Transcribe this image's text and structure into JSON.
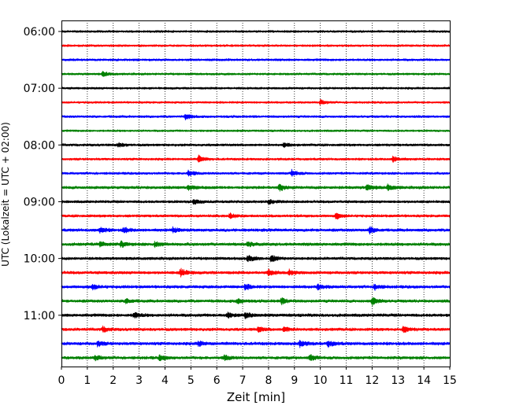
{
  "chart_data": {
    "type": "line",
    "xlabel": "Zeit  [min]",
    "ylabel": "UTC (Lokalzeit = UTC + 02:00)",
    "xlim": [
      0,
      15
    ],
    "x_ticks": [
      0,
      1,
      2,
      3,
      4,
      5,
      6,
      7,
      8,
      9,
      10,
      11,
      12,
      13,
      14,
      15
    ],
    "x_tick_labels": [
      "0",
      "1",
      "2",
      "3",
      "4",
      "5",
      "6",
      "7",
      "8",
      "9",
      "10",
      "11",
      "12",
      "13",
      "14",
      "15"
    ],
    "vertical_grid": "dotted, at every minute",
    "y_tick_labels": [
      "06:00",
      "07:00",
      "08:00",
      "09:00",
      "10:00",
      "11:00"
    ],
    "trace_start_times": [
      "06:00",
      "06:15",
      "06:30",
      "06:45",
      "07:00",
      "07:15",
      "07:30",
      "07:45",
      "08:00",
      "08:15",
      "08:30",
      "08:45",
      "09:00",
      "09:15",
      "09:30",
      "09:45",
      "10:00",
      "10:15",
      "10:30",
      "10:45",
      "11:00",
      "11:15",
      "11:30",
      "11:45"
    ],
    "trace_minutes_per_line": 15,
    "color_cycle": [
      "#000000",
      "#ff0000",
      "#0000ff",
      "#008000"
    ],
    "series": [
      {
        "start": "06:00",
        "amp": 1.5,
        "events": []
      },
      {
        "start": "06:15",
        "amp": 1.5,
        "events": []
      },
      {
        "start": "06:30",
        "amp": 1.6,
        "events": []
      },
      {
        "start": "06:45",
        "amp": 1.5,
        "events": [
          {
            "x": 1.6,
            "a": 3
          }
        ]
      },
      {
        "start": "07:00",
        "amp": 1.5,
        "events": []
      },
      {
        "start": "07:15",
        "amp": 1.4,
        "events": [
          {
            "x": 10.0,
            "a": 3
          }
        ]
      },
      {
        "start": "07:30",
        "amp": 1.6,
        "events": [
          {
            "x": 4.8,
            "a": 3.5
          }
        ]
      },
      {
        "start": "07:45",
        "amp": 1.4,
        "events": []
      },
      {
        "start": "08:00",
        "amp": 1.7,
        "events": [
          {
            "x": 2.2,
            "a": 2.5
          },
          {
            "x": 8.6,
            "a": 2.5
          }
        ]
      },
      {
        "start": "08:15",
        "amp": 1.6,
        "events": [
          {
            "x": 5.3,
            "a": 4
          },
          {
            "x": 12.8,
            "a": 3.5
          }
        ]
      },
      {
        "start": "08:30",
        "amp": 1.6,
        "events": [
          {
            "x": 4.9,
            "a": 3.5
          },
          {
            "x": 8.9,
            "a": 4
          }
        ]
      },
      {
        "start": "08:45",
        "amp": 2.0,
        "events": [
          {
            "x": 4.9,
            "a": 3.5
          },
          {
            "x": 8.4,
            "a": 4.5
          },
          {
            "x": 11.8,
            "a": 3.5
          },
          {
            "x": 12.6,
            "a": 3.5
          }
        ]
      },
      {
        "start": "09:00",
        "amp": 1.8,
        "events": [
          {
            "x": 5.1,
            "a": 3
          },
          {
            "x": 8.0,
            "a": 3
          }
        ]
      },
      {
        "start": "09:15",
        "amp": 1.8,
        "events": [
          {
            "x": 6.5,
            "a": 3
          },
          {
            "x": 10.6,
            "a": 3.5
          }
        ]
      },
      {
        "start": "09:30",
        "amp": 2.0,
        "events": [
          {
            "x": 1.5,
            "a": 3.5
          },
          {
            "x": 2.4,
            "a": 3
          },
          {
            "x": 4.3,
            "a": 3
          },
          {
            "x": 11.9,
            "a": 4
          }
        ]
      },
      {
        "start": "09:45",
        "amp": 2.1,
        "events": [
          {
            "x": 1.5,
            "a": 3
          },
          {
            "x": 2.3,
            "a": 3
          },
          {
            "x": 3.6,
            "a": 3
          },
          {
            "x": 7.2,
            "a": 3
          }
        ]
      },
      {
        "start": "10:00",
        "amp": 1.9,
        "events": [
          {
            "x": 7.2,
            "a": 4
          },
          {
            "x": 8.1,
            "a": 4.5
          }
        ]
      },
      {
        "start": "10:15",
        "amp": 2.0,
        "events": [
          {
            "x": 4.6,
            "a": 5
          },
          {
            "x": 8.0,
            "a": 3.5
          },
          {
            "x": 8.8,
            "a": 3
          }
        ]
      },
      {
        "start": "10:30",
        "amp": 2.0,
        "events": [
          {
            "x": 1.2,
            "a": 3
          },
          {
            "x": 7.1,
            "a": 3.5
          },
          {
            "x": 9.9,
            "a": 3
          },
          {
            "x": 12.1,
            "a": 3
          }
        ]
      },
      {
        "start": "10:45",
        "amp": 2.0,
        "events": [
          {
            "x": 2.5,
            "a": 3
          },
          {
            "x": 6.8,
            "a": 3
          },
          {
            "x": 8.5,
            "a": 3.5
          },
          {
            "x": 12.0,
            "a": 4.5
          }
        ]
      },
      {
        "start": "11:00",
        "amp": 2.1,
        "events": [
          {
            "x": 2.8,
            "a": 3.5
          },
          {
            "x": 6.4,
            "a": 3
          },
          {
            "x": 7.1,
            "a": 3.5
          }
        ]
      },
      {
        "start": "11:15",
        "amp": 2.0,
        "events": [
          {
            "x": 1.6,
            "a": 3
          },
          {
            "x": 7.6,
            "a": 3
          },
          {
            "x": 8.6,
            "a": 3
          },
          {
            "x": 13.2,
            "a": 3.5
          }
        ]
      },
      {
        "start": "11:30",
        "amp": 2.1,
        "events": [
          {
            "x": 1.4,
            "a": 3
          },
          {
            "x": 5.3,
            "a": 3
          },
          {
            "x": 9.2,
            "a": 4
          },
          {
            "x": 10.3,
            "a": 4
          }
        ]
      },
      {
        "start": "11:45",
        "amp": 2.0,
        "events": [
          {
            "x": 1.3,
            "a": 3
          },
          {
            "x": 3.8,
            "a": 3
          },
          {
            "x": 6.3,
            "a": 3
          },
          {
            "x": 9.6,
            "a": 3.5
          }
        ]
      }
    ]
  }
}
